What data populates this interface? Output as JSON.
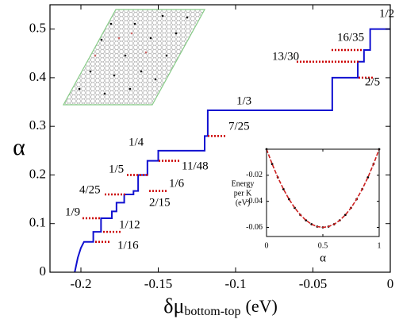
{
  "chart_data": [
    {
      "type": "line",
      "xlabel": "δμ",
      "xlabel_sub": "bottom-top",
      "xlabel_unit": "(eV)",
      "ylabel": "α",
      "xlim": [
        -0.22,
        0
      ],
      "ylim": [
        0,
        0.55
      ],
      "xticks": [
        -0.2,
        -0.15,
        -0.1,
        -0.05,
        0
      ],
      "yticks": [
        0,
        0.1,
        0.2,
        0.3,
        0.4,
        0.5
      ],
      "series": [
        {
          "color": "#1010d0",
          "x": [
            -0.204,
            -0.202,
            -0.2,
            -0.198,
            -0.192,
            -0.192,
            -0.187,
            -0.187,
            -0.18,
            -0.18,
            -0.177,
            -0.177,
            -0.172,
            -0.172,
            -0.166,
            -0.166,
            -0.163,
            -0.163,
            -0.157,
            -0.157,
            -0.15,
            -0.15,
            -0.12,
            -0.12,
            -0.118,
            -0.118,
            -0.0375,
            -0.0375,
            -0.021,
            -0.021,
            -0.017,
            -0.017,
            -0.013,
            -0.013,
            0
          ],
          "values": [
            0,
            0.03,
            0.05,
            0.0625,
            0.0625,
            0.083,
            0.083,
            0.111,
            0.111,
            0.125,
            0.125,
            0.143,
            0.143,
            0.16,
            0.16,
            0.167,
            0.167,
            0.2,
            0.2,
            0.229,
            0.229,
            0.25,
            0.25,
            0.28,
            0.28,
            0.333,
            0.333,
            0.4,
            0.4,
            0.433,
            0.433,
            0.457,
            0.457,
            0.5,
            0.5
          ]
        }
      ],
      "annotations": [
        {
          "label": "1/2",
          "value": 0.5
        },
        {
          "label": "16/35",
          "value": 0.457
        },
        {
          "label": "13/30",
          "value": 0.433
        },
        {
          "label": "2/5",
          "value": 0.4
        },
        {
          "label": "1/3",
          "value": 0.333
        },
        {
          "label": "7/25",
          "value": 0.28
        },
        {
          "label": "1/4",
          "value": 0.25
        },
        {
          "label": "11/48",
          "value": 0.229
        },
        {
          "label": "1/5",
          "value": 0.2
        },
        {
          "label": "1/6",
          "value": 0.167
        },
        {
          "label": "4/25",
          "value": 0.16
        },
        {
          "label": "2/15",
          "value": 0.133
        },
        {
          "label": "1/9",
          "value": 0.111
        },
        {
          "label": "1/12",
          "value": 0.083
        },
        {
          "label": "1/16",
          "value": 0.0625
        }
      ],
      "annotation_color": "#cc0000"
    },
    {
      "type": "line",
      "xlabel": "α",
      "ylabel": [
        "Energy",
        "per K",
        "(eV)"
      ],
      "xlim": [
        0,
        1
      ],
      "ylim": [
        -0.067,
        0
      ],
      "xticks": [
        0,
        0.5,
        1
      ],
      "yticks": [
        -0.02,
        -0.04,
        -0.06
      ],
      "series": [
        {
          "color": "#000000",
          "style": "dots",
          "x": [
            0,
            0.05,
            0.1,
            0.15,
            0.2,
            0.25,
            0.3,
            0.35,
            0.4,
            0.45,
            0.5,
            0.55,
            0.6,
            0.65,
            0.7,
            0.75,
            0.8,
            0.85,
            0.9,
            0.95,
            1
          ],
          "values": [
            0,
            -0.0114,
            -0.0216,
            -0.0306,
            -0.0384,
            -0.045,
            -0.0504,
            -0.0546,
            -0.0576,
            -0.0594,
            -0.06,
            -0.0594,
            -0.0576,
            -0.0546,
            -0.0504,
            -0.045,
            -0.0384,
            -0.0306,
            -0.0216,
            -0.0114,
            0
          ]
        },
        {
          "color": "#cc2020",
          "style": "dashed",
          "x": [
            0,
            0.05,
            0.1,
            0.15,
            0.2,
            0.25,
            0.3,
            0.35,
            0.4,
            0.45,
            0.5,
            0.55,
            0.6,
            0.65,
            0.7,
            0.75,
            0.8,
            0.85,
            0.9,
            0.95,
            1
          ],
          "values": [
            0,
            -0.0114,
            -0.0216,
            -0.0306,
            -0.0384,
            -0.045,
            -0.0504,
            -0.0546,
            -0.0576,
            -0.0594,
            -0.06,
            -0.0594,
            -0.0576,
            -0.0546,
            -0.0504,
            -0.045,
            -0.0384,
            -0.0306,
            -0.0216,
            -0.0114,
            0
          ]
        }
      ]
    }
  ]
}
